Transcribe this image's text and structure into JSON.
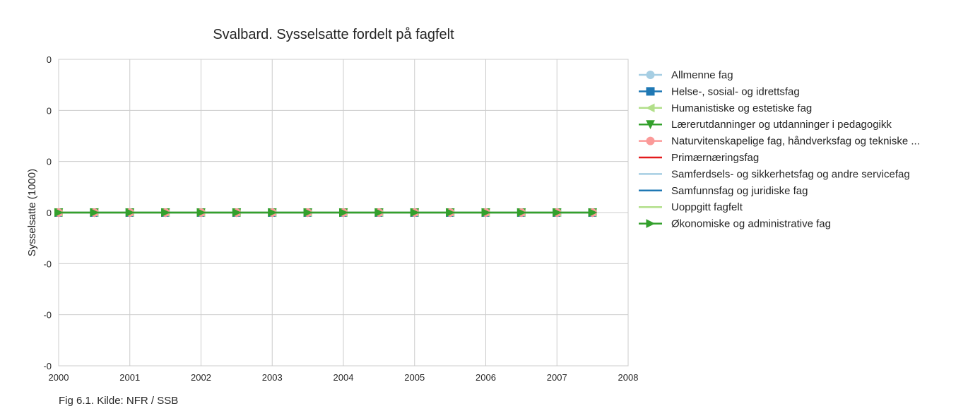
{
  "chart_data": {
    "type": "line",
    "title": "Svalbard. Sysselsatte fordelt på fagfelt",
    "xlabel": "",
    "ylabel": "Sysselsatte (1000)",
    "x_ticks": [
      "2000",
      "2001",
      "2002",
      "2003",
      "2004",
      "2005",
      "2006",
      "2007",
      "2008"
    ],
    "y_ticks": [
      "0",
      "0",
      "0",
      "0",
      "-0",
      "-0",
      "-0"
    ],
    "xlim": [
      2000,
      2008
    ],
    "ylim": [
      -0.0003,
      0.0003
    ],
    "grid": true,
    "legend_position": "right",
    "x": [
      2000,
      2000.5,
      2001,
      2001.5,
      2002,
      2002.5,
      2003,
      2003.5,
      2004,
      2004.5,
      2005,
      2005.5,
      2006,
      2006.5,
      2007,
      2007.5
    ],
    "series": [
      {
        "name": "Allmenne fag",
        "color": "#a6cee3",
        "marker": "circle",
        "values": [
          0,
          0,
          0,
          0,
          0,
          0,
          0,
          0,
          0,
          0,
          0,
          0,
          0,
          0,
          0,
          0
        ]
      },
      {
        "name": "Helse-, sosial- og idrettsfag",
        "color": "#1f78b4",
        "marker": "square",
        "values": [
          0,
          0,
          0,
          0,
          0,
          0,
          0,
          0,
          0,
          0,
          0,
          0,
          0,
          0,
          0,
          0
        ]
      },
      {
        "name": "Humanistiske og estetiske fag",
        "color": "#b2df8a",
        "marker": "triangle-left",
        "values": [
          0,
          0,
          0,
          0,
          0,
          0,
          0,
          0,
          0,
          0,
          0,
          0,
          0,
          0,
          0,
          0
        ]
      },
      {
        "name": "Lærerutdanninger og utdanninger i pedagogikk",
        "color": "#33a02c",
        "marker": "triangle-down",
        "values": [
          0,
          0,
          0,
          0,
          0,
          0,
          0,
          0,
          0,
          0,
          0,
          0,
          0,
          0,
          0,
          0
        ]
      },
      {
        "name": "Naturvitenskapelige fag, håndverksfag og tekniske ...",
        "color": "#fb9a99",
        "marker": "circle",
        "values": [
          0,
          0,
          0,
          0,
          0,
          0,
          0,
          0,
          0,
          0,
          0,
          0,
          0,
          0,
          0,
          0
        ]
      },
      {
        "name": "Primærnæringsfag",
        "color": "#e31a1c",
        "marker": "none",
        "values": [
          0,
          0,
          0,
          0,
          0,
          0,
          0,
          0,
          0,
          0,
          0,
          0,
          0,
          0,
          0,
          0
        ]
      },
      {
        "name": "Samferdsels- og sikkerhetsfag og andre servicefag",
        "color": "#a6cee3",
        "marker": "none",
        "values": [
          0,
          0,
          0,
          0,
          0,
          0,
          0,
          0,
          0,
          0,
          0,
          0,
          0,
          0,
          0,
          0
        ]
      },
      {
        "name": "Samfunnsfag og juridiske fag",
        "color": "#1f78b4",
        "marker": "none",
        "values": [
          0,
          0,
          0,
          0,
          0,
          0,
          0,
          0,
          0,
          0,
          0,
          0,
          0,
          0,
          0,
          0
        ]
      },
      {
        "name": "Uoppgitt fagfelt",
        "color": "#b2df8a",
        "marker": "none",
        "values": [
          0,
          0,
          0,
          0,
          0,
          0,
          0,
          0,
          0,
          0,
          0,
          0,
          0,
          0,
          0,
          0
        ]
      },
      {
        "name": "Økonomiske og administrative fag",
        "color": "#33a02c",
        "marker": "triangle-right",
        "values": [
          0,
          0,
          0,
          0,
          0,
          0,
          0,
          0,
          0,
          0,
          0,
          0,
          0,
          0,
          0,
          0
        ]
      }
    ]
  },
  "caption": "Fig 6.1. Kilde: NFR / SSB"
}
